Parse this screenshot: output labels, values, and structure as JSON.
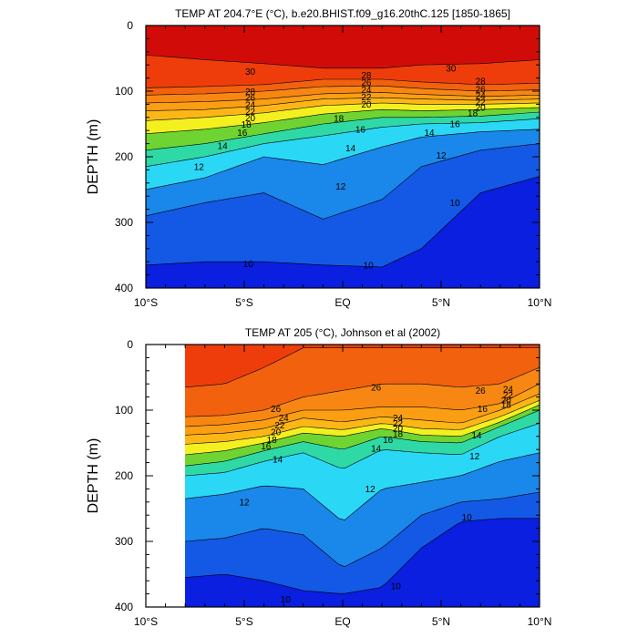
{
  "chart_data": [
    {
      "type": "contour",
      "title": "TEMP AT 204.7°E (°C), b.e20.BHIST.f09_g16.20thC.125 [1850-1865]",
      "xlabel": "",
      "ylabel": "DEPTH (m)",
      "xlim": [
        -10,
        10
      ],
      "ylim": [
        400,
        0
      ],
      "x_ticks": [
        {
          "value": -10,
          "label": "10°S"
        },
        {
          "value": -5,
          "label": "5°S"
        },
        {
          "value": 0,
          "label": "EQ"
        },
        {
          "value": 5,
          "label": "5°N"
        },
        {
          "value": 10,
          "label": "10°N"
        }
      ],
      "y_ticks": [
        {
          "value": 0,
          "label": "0"
        },
        {
          "value": 100,
          "label": "100"
        },
        {
          "value": 200,
          "label": "200"
        },
        {
          "value": 300,
          "label": "300"
        },
        {
          "value": 400,
          "label": "400"
        }
      ],
      "data_x_range": [
        -10,
        10
      ],
      "colormap": [
        {
          "min": 0,
          "color": "#0a1fe0"
        },
        {
          "min": 10,
          "color": "#1459e6"
        },
        {
          "min": 11,
          "color": "#1a87ea"
        },
        {
          "min": 12,
          "color": "#20b3f1"
        },
        {
          "min": 13,
          "color": "#2ad8f5"
        },
        {
          "min": 14,
          "color": "#30e8e0"
        },
        {
          "min": 15,
          "color": "#2fd9a6"
        },
        {
          "min": 16,
          "color": "#22c95a"
        },
        {
          "min": 17,
          "color": "#6fd431"
        },
        {
          "min": 18,
          "color": "#c4e326"
        },
        {
          "min": 19,
          "color": "#f4f01f"
        },
        {
          "min": 20,
          "color": "#fad21a"
        },
        {
          "min": 21,
          "color": "#fcb717"
        },
        {
          "min": 22,
          "color": "#fb9e14"
        },
        {
          "min": 24,
          "color": "#f78712"
        },
        {
          "min": 26,
          "color": "#f2610e"
        },
        {
          "min": 28,
          "color": "#ee3d0b"
        },
        {
          "min": 29.5,
          "color": "#ec1b0a"
        },
        {
          "min": 30.5,
          "color": "#d10c08"
        }
      ],
      "isotherm_depths": [
        {
          "temp": 30,
          "x": [
            -10,
            -7,
            -4,
            -1,
            2,
            4,
            7,
            10
          ],
          "depth": [
            45,
            52,
            58,
            65,
            65,
            60,
            58,
            52
          ]
        },
        {
          "temp": 28,
          "x": [
            -10,
            -7,
            -4,
            -1,
            2,
            4,
            7,
            10
          ],
          "depth": [
            95,
            93,
            90,
            82,
            82,
            86,
            90,
            88
          ]
        },
        {
          "temp": 26,
          "x": [
            -10,
            -7,
            -4,
            -1,
            2,
            4,
            7,
            10
          ],
          "depth": [
            106,
            104,
            100,
            93,
            92,
            96,
            100,
            98
          ]
        },
        {
          "temp": 24,
          "x": [
            -10,
            -7,
            -4,
            -1,
            2,
            4,
            7,
            10
          ],
          "depth": [
            118,
            116,
            112,
            104,
            102,
            105,
            108,
            106
          ]
        },
        {
          "temp": 22,
          "x": [
            -10,
            -7,
            -4,
            -1,
            2,
            4,
            7,
            10
          ],
          "depth": [
            130,
            128,
            122,
            112,
            110,
            112,
            114,
            112
          ]
        },
        {
          "temp": 20,
          "x": [
            -10,
            -7,
            -4,
            -1,
            2,
            4,
            7,
            10
          ],
          "depth": [
            145,
            140,
            133,
            122,
            118,
            120,
            120,
            118
          ]
        },
        {
          "temp": 18,
          "x": [
            -10,
            -7,
            -4,
            -1,
            2,
            4,
            7,
            10
          ],
          "depth": [
            165,
            158,
            148,
            135,
            128,
            130,
            128,
            125
          ]
        },
        {
          "temp": 16,
          "x": [
            -10,
            -7,
            -4,
            -1,
            2,
            4,
            7,
            10
          ],
          "depth": [
            190,
            180,
            165,
            150,
            140,
            140,
            138,
            132
          ]
        },
        {
          "temp": 14,
          "x": [
            -10,
            -7,
            -4,
            -1,
            2,
            4,
            7,
            10
          ],
          "depth": [
            215,
            200,
            180,
            168,
            155,
            150,
            148,
            142
          ]
        },
        {
          "temp": 12,
          "x": [
            -10,
            -7,
            -4,
            -1,
            2,
            4,
            7,
            10
          ],
          "depth": [
            250,
            232,
            200,
            212,
            185,
            170,
            162,
            158
          ]
        },
        {
          "temp": 11,
          "x": [
            -10,
            -7,
            -4,
            -1,
            2,
            4,
            7,
            10
          ],
          "depth": [
            290,
            270,
            255,
            295,
            265,
            215,
            190,
            180
          ]
        },
        {
          "temp": 10,
          "x": [
            -10,
            -7,
            -4,
            -1,
            2,
            4,
            7,
            10
          ],
          "depth": [
            365,
            360,
            360,
            365,
            368,
            340,
            255,
            230
          ]
        }
      ],
      "contour_labels": [
        {
          "text": "30",
          "x": -4.7,
          "depth": 70
        },
        {
          "text": "28",
          "x": -4.7,
          "depth": 101
        },
        {
          "text": "26",
          "x": -4.7,
          "depth": 110
        },
        {
          "text": "24",
          "x": -4.7,
          "depth": 121
        },
        {
          "text": "22",
          "x": -4.7,
          "depth": 131
        },
        {
          "text": "20",
          "x": -4.7,
          "depth": 141
        },
        {
          "text": "18",
          "x": -4.9,
          "depth": 151
        },
        {
          "text": "16",
          "x": -5.1,
          "depth": 163
        },
        {
          "text": "14",
          "x": -6.1,
          "depth": 183
        },
        {
          "text": "12",
          "x": -7.3,
          "depth": 215
        },
        {
          "text": "10",
          "x": -4.8,
          "depth": 363
        },
        {
          "text": "28",
          "x": 1.2,
          "depth": 76
        },
        {
          "text": "26",
          "x": 1.2,
          "depth": 87
        },
        {
          "text": "24",
          "x": 1.2,
          "depth": 98
        },
        {
          "text": "22",
          "x": 1.2,
          "depth": 109
        },
        {
          "text": "20",
          "x": 1.2,
          "depth": 120
        },
        {
          "text": "18",
          "x": -0.2,
          "depth": 142
        },
        {
          "text": "16",
          "x": 0.9,
          "depth": 158
        },
        {
          "text": "14",
          "x": 0.4,
          "depth": 187
        },
        {
          "text": "12",
          "x": -0.1,
          "depth": 245
        },
        {
          "text": "10",
          "x": 1.3,
          "depth": 365
        },
        {
          "text": "30",
          "x": 5.5,
          "depth": 65
        },
        {
          "text": "28",
          "x": 7.0,
          "depth": 85
        },
        {
          "text": "26",
          "x": 7.0,
          "depth": 97
        },
        {
          "text": "24",
          "x": 7.0,
          "depth": 107
        },
        {
          "text": "22",
          "x": 7.0,
          "depth": 117
        },
        {
          "text": "20",
          "x": 7.0,
          "depth": 125
        },
        {
          "text": "18",
          "x": 6.6,
          "depth": 133
        },
        {
          "text": "16",
          "x": 5.7,
          "depth": 150
        },
        {
          "text": "14",
          "x": 4.4,
          "depth": 163
        },
        {
          "text": "12",
          "x": 5.0,
          "depth": 198
        },
        {
          "text": "10",
          "x": 5.7,
          "depth": 270
        }
      ]
    },
    {
      "type": "contour",
      "title": "TEMP AT 205 (°C), Johnson et al (2002)",
      "xlabel": "",
      "ylabel": "DEPTH (m)",
      "xlim": [
        -10,
        10
      ],
      "ylim": [
        400,
        0
      ],
      "x_ticks": [
        {
          "value": -10,
          "label": "10°S"
        },
        {
          "value": -5,
          "label": "5°S"
        },
        {
          "value": 0,
          "label": "EQ"
        },
        {
          "value": 5,
          "label": "5°N"
        },
        {
          "value": 10,
          "label": "10°N"
        }
      ],
      "y_ticks": [
        {
          "value": 0,
          "label": "0"
        },
        {
          "value": 100,
          "label": "100"
        },
        {
          "value": 200,
          "label": "200"
        },
        {
          "value": 300,
          "label": "300"
        },
        {
          "value": 400,
          "label": "400"
        }
      ],
      "data_x_range": [
        -8,
        10
      ],
      "colormap": [
        {
          "min": 0,
          "color": "#0a1fe0"
        },
        {
          "min": 10,
          "color": "#1459e6"
        },
        {
          "min": 11,
          "color": "#1a87ea"
        },
        {
          "min": 12,
          "color": "#20b3f1"
        },
        {
          "min": 13,
          "color": "#2ad8f5"
        },
        {
          "min": 14,
          "color": "#30e8e0"
        },
        {
          "min": 15,
          "color": "#2fd9a6"
        },
        {
          "min": 16,
          "color": "#22c95a"
        },
        {
          "min": 17,
          "color": "#6fd431"
        },
        {
          "min": 18,
          "color": "#c4e326"
        },
        {
          "min": 19,
          "color": "#f4f01f"
        },
        {
          "min": 20,
          "color": "#fad21a"
        },
        {
          "min": 21,
          "color": "#fcb717"
        },
        {
          "min": 22,
          "color": "#fb9e14"
        },
        {
          "min": 24,
          "color": "#f78712"
        },
        {
          "min": 26,
          "color": "#f2610e"
        },
        {
          "min": 28,
          "color": "#ee3d0b"
        }
      ],
      "isotherm_depths": [
        {
          "temp": 28,
          "x": [
            -8,
            -6,
            -4,
            -2,
            0,
            2,
            4,
            6,
            8,
            10
          ],
          "depth": [
            65,
            60,
            35,
            5,
            5,
            5,
            5,
            5,
            5,
            5
          ]
        },
        {
          "temp": 26,
          "x": [
            -8,
            -6,
            -4,
            -2,
            0,
            2,
            4,
            6,
            8,
            10
          ],
          "depth": [
            110,
            108,
            100,
            80,
            70,
            60,
            60,
            65,
            60,
            35
          ]
        },
        {
          "temp": 24,
          "x": [
            -8,
            -6,
            -4,
            -2,
            0,
            2,
            4,
            6,
            8,
            10
          ],
          "depth": [
            125,
            122,
            115,
            100,
            100,
            95,
            95,
            100,
            90,
            60
          ]
        },
        {
          "temp": 22,
          "x": [
            -8,
            -6,
            -4,
            -2,
            0,
            2,
            4,
            6,
            8,
            10
          ],
          "depth": [
            138,
            135,
            128,
            112,
            118,
            110,
            115,
            120,
            100,
            75
          ]
        },
        {
          "temp": 20,
          "x": [
            -8,
            -6,
            -4,
            -2,
            0,
            2,
            4,
            6,
            8,
            10
          ],
          "depth": [
            152,
            148,
            140,
            125,
            130,
            120,
            128,
            130,
            110,
            85
          ]
        },
        {
          "temp": 18,
          "x": [
            -8,
            -6,
            -4,
            -2,
            0,
            2,
            4,
            6,
            8,
            10
          ],
          "depth": [
            168,
            162,
            150,
            135,
            140,
            128,
            138,
            140,
            118,
            92
          ]
        },
        {
          "temp": 16,
          "x": [
            -8,
            -6,
            -4,
            -2,
            0,
            2,
            4,
            6,
            8,
            10
          ],
          "depth": [
            185,
            178,
            162,
            148,
            160,
            140,
            148,
            150,
            125,
            100
          ]
        },
        {
          "temp": 14,
          "x": [
            -8,
            -6,
            -4,
            -2,
            0,
            2,
            4,
            6,
            8,
            10
          ],
          "depth": [
            200,
            195,
            178,
            165,
            190,
            160,
            165,
            168,
            140,
            120
          ]
        },
        {
          "temp": 12,
          "x": [
            -8,
            -6,
            -4,
            -2,
            0,
            2,
            4,
            6,
            8,
            10
          ],
          "depth": [
            235,
            228,
            215,
            220,
            270,
            220,
            210,
            200,
            178,
            165
          ]
        },
        {
          "temp": 11,
          "x": [
            -8,
            -6,
            -4,
            -2,
            0,
            2,
            4,
            6,
            8,
            10
          ],
          "depth": [
            300,
            295,
            280,
            290,
            340,
            310,
            260,
            240,
            235,
            225
          ]
        },
        {
          "temp": 10,
          "x": [
            -8,
            -6,
            -4,
            -2,
            0,
            2,
            4,
            6,
            8,
            10
          ],
          "depth": [
            355,
            350,
            360,
            375,
            380,
            370,
            310,
            270,
            265,
            265
          ]
        }
      ],
      "contour_labels": [
        {
          "text": "26",
          "x": -3.4,
          "depth": 98
        },
        {
          "text": "24",
          "x": -3.0,
          "depth": 112
        },
        {
          "text": "22",
          "x": -3.2,
          "depth": 123
        },
        {
          "text": "20",
          "x": -3.4,
          "depth": 133
        },
        {
          "text": "18",
          "x": -3.6,
          "depth": 145
        },
        {
          "text": "16",
          "x": -3.9,
          "depth": 155
        },
        {
          "text": "14",
          "x": -3.3,
          "depth": 175
        },
        {
          "text": "12",
          "x": -5.0,
          "depth": 240
        },
        {
          "text": "10",
          "x": -2.9,
          "depth": 388
        },
        {
          "text": "26",
          "x": 1.7,
          "depth": 65
        },
        {
          "text": "24",
          "x": 2.8,
          "depth": 112
        },
        {
          "text": "22",
          "x": 2.8,
          "depth": 120
        },
        {
          "text": "20",
          "x": 2.8,
          "depth": 128
        },
        {
          "text": "18",
          "x": 2.8,
          "depth": 136
        },
        {
          "text": "16",
          "x": 2.3,
          "depth": 145
        },
        {
          "text": "14",
          "x": 1.7,
          "depth": 158
        },
        {
          "text": "12",
          "x": 1.4,
          "depth": 220
        },
        {
          "text": "10",
          "x": 2.7,
          "depth": 368
        },
        {
          "text": "26",
          "x": 7.0,
          "depth": 70
        },
        {
          "text": "24",
          "x": 8.4,
          "depth": 68
        },
        {
          "text": "22",
          "x": 8.4,
          "depth": 77
        },
        {
          "text": "20",
          "x": 8.3,
          "depth": 85
        },
        {
          "text": "18",
          "x": 8.3,
          "depth": 92
        },
        {
          "text": "16",
          "x": 7.1,
          "depth": 98
        },
        {
          "text": "14",
          "x": 6.8,
          "depth": 138
        },
        {
          "text": "12",
          "x": 6.7,
          "depth": 170
        },
        {
          "text": "10",
          "x": 6.3,
          "depth": 263
        }
      ]
    }
  ]
}
